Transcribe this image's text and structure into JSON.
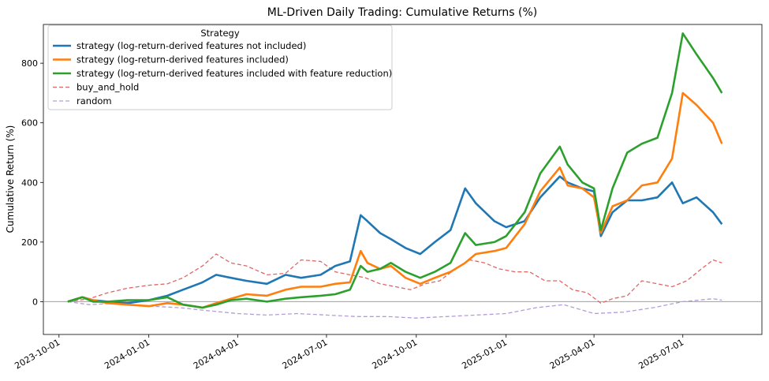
{
  "chart_data": {
    "type": "line",
    "title": "ML-Driven Daily Trading: Cumulative Returns (%)",
    "xlabel": "",
    "ylabel": "Cumulative Return (%)",
    "ylim": [
      -110,
      930
    ],
    "yticks": [
      0,
      200,
      400,
      600,
      800
    ],
    "xlim": [
      "2023-09-15",
      "2025-09-20"
    ],
    "xticks": [
      "2023-10-01",
      "2024-01-01",
      "2024-04-01",
      "2024-07-01",
      "2024-10-01",
      "2025-01-01",
      "2025-04-01",
      "2025-07-01"
    ],
    "legend": {
      "title": "Strategy",
      "placement": "upper-left"
    },
    "hline": 0,
    "series": [
      {
        "name": "strategy (log-return-derived features not included)",
        "color": "#1f77b4",
        "style": "solid",
        "x": [
          "2023-10-10",
          "2023-10-25",
          "2023-11-05",
          "2023-11-20",
          "2023-12-10",
          "2024-01-01",
          "2024-01-20",
          "2024-02-05",
          "2024-02-25",
          "2024-03-10",
          "2024-03-25",
          "2024-04-10",
          "2024-05-01",
          "2024-05-20",
          "2024-06-05",
          "2024-06-25",
          "2024-07-10",
          "2024-07-25",
          "2024-08-05",
          "2024-08-12",
          "2024-08-25",
          "2024-09-05",
          "2024-09-20",
          "2024-10-05",
          "2024-10-20",
          "2024-11-05",
          "2024-11-20",
          "2024-12-01",
          "2024-12-20",
          "2025-01-01",
          "2025-01-20",
          "2025-02-05",
          "2025-02-25",
          "2025-03-05",
          "2025-03-20",
          "2025-04-01",
          "2025-04-08",
          "2025-04-20",
          "2025-05-05",
          "2025-05-20",
          "2025-06-05",
          "2025-06-20",
          "2025-07-01",
          "2025-07-15",
          "2025-08-01",
          "2025-08-10"
        ],
        "y": [
          0,
          15,
          5,
          0,
          -5,
          5,
          20,
          40,
          65,
          90,
          80,
          70,
          60,
          90,
          80,
          90,
          120,
          135,
          290,
          270,
          230,
          210,
          180,
          160,
          200,
          240,
          380,
          330,
          270,
          250,
          270,
          350,
          420,
          400,
          380,
          370,
          220,
          300,
          340,
          340,
          350,
          400,
          330,
          350,
          300,
          260
        ]
      },
      {
        "name": "strategy (log-return-derived features included)",
        "color": "#ff7f0e",
        "style": "solid",
        "x": [
          "2023-10-10",
          "2023-10-25",
          "2023-11-05",
          "2023-11-20",
          "2023-12-10",
          "2024-01-01",
          "2024-01-20",
          "2024-02-05",
          "2024-02-25",
          "2024-03-10",
          "2024-03-25",
          "2024-04-10",
          "2024-05-01",
          "2024-05-20",
          "2024-06-05",
          "2024-06-25",
          "2024-07-10",
          "2024-07-25",
          "2024-08-05",
          "2024-08-12",
          "2024-08-25",
          "2024-09-05",
          "2024-09-20",
          "2024-10-05",
          "2024-10-20",
          "2024-11-05",
          "2024-11-20",
          "2024-12-01",
          "2024-12-20",
          "2025-01-01",
          "2025-01-20",
          "2025-02-05",
          "2025-02-25",
          "2025-03-05",
          "2025-03-20",
          "2025-04-01",
          "2025-04-08",
          "2025-04-20",
          "2025-05-05",
          "2025-05-20",
          "2025-06-05",
          "2025-06-20",
          "2025-07-01",
          "2025-07-15",
          "2025-08-01",
          "2025-08-10"
        ],
        "y": [
          0,
          15,
          5,
          -5,
          -10,
          -15,
          -5,
          -10,
          -20,
          -5,
          10,
          25,
          20,
          40,
          50,
          50,
          60,
          65,
          170,
          130,
          110,
          120,
          80,
          60,
          80,
          100,
          130,
          160,
          170,
          180,
          260,
          370,
          450,
          390,
          380,
          350,
          230,
          320,
          340,
          390,
          400,
          480,
          700,
          660,
          600,
          530
        ]
      },
      {
        "name": "strategy (log-return-derived features included with feature reduction)",
        "color": "#2ca02c",
        "style": "solid",
        "x": [
          "2023-10-10",
          "2023-10-25",
          "2023-11-05",
          "2023-11-20",
          "2023-12-10",
          "2024-01-01",
          "2024-01-20",
          "2024-02-05",
          "2024-02-25",
          "2024-03-10",
          "2024-03-25",
          "2024-04-10",
          "2024-05-01",
          "2024-05-20",
          "2024-06-05",
          "2024-06-25",
          "2024-07-10",
          "2024-07-25",
          "2024-08-05",
          "2024-08-12",
          "2024-08-25",
          "2024-09-05",
          "2024-09-20",
          "2024-10-05",
          "2024-10-20",
          "2024-11-05",
          "2024-11-20",
          "2024-12-01",
          "2024-12-20",
          "2025-01-01",
          "2025-01-20",
          "2025-02-05",
          "2025-02-25",
          "2025-03-05",
          "2025-03-20",
          "2025-04-01",
          "2025-04-08",
          "2025-04-20",
          "2025-05-05",
          "2025-05-20",
          "2025-06-05",
          "2025-06-20",
          "2025-07-01",
          "2025-07-15",
          "2025-08-01",
          "2025-08-10"
        ],
        "y": [
          0,
          15,
          0,
          0,
          5,
          5,
          15,
          -10,
          -20,
          -10,
          5,
          10,
          0,
          10,
          15,
          20,
          25,
          40,
          120,
          100,
          110,
          130,
          100,
          80,
          100,
          130,
          230,
          190,
          200,
          220,
          300,
          430,
          520,
          460,
          400,
          380,
          240,
          380,
          500,
          530,
          550,
          700,
          900,
          830,
          750,
          700
        ]
      },
      {
        "name": "buy_and_hold",
        "color": "#e06666",
        "style": "dashed",
        "x": [
          "2023-10-10",
          "2023-11-01",
          "2023-11-20",
          "2023-12-10",
          "2024-01-01",
          "2024-01-20",
          "2024-02-05",
          "2024-02-25",
          "2024-03-10",
          "2024-03-25",
          "2024-04-10",
          "2024-05-01",
          "2024-05-20",
          "2024-06-05",
          "2024-06-25",
          "2024-07-10",
          "2024-07-25",
          "2024-08-10",
          "2024-08-25",
          "2024-09-10",
          "2024-09-25",
          "2024-10-10",
          "2024-10-25",
          "2024-11-10",
          "2024-11-25",
          "2024-12-10",
          "2024-12-25",
          "2025-01-10",
          "2025-01-25",
          "2025-02-10",
          "2025-02-25",
          "2025-03-10",
          "2025-03-25",
          "2025-04-08",
          "2025-04-20",
          "2025-05-05",
          "2025-05-20",
          "2025-06-05",
          "2025-06-20",
          "2025-07-05",
          "2025-07-20",
          "2025-08-01",
          "2025-08-10"
        ],
        "y": [
          0,
          10,
          30,
          45,
          55,
          60,
          80,
          120,
          160,
          130,
          120,
          90,
          95,
          140,
          135,
          100,
          90,
          80,
          60,
          50,
          40,
          60,
          70,
          110,
          140,
          130,
          110,
          100,
          100,
          70,
          70,
          40,
          30,
          -5,
          10,
          20,
          70,
          60,
          50,
          70,
          110,
          140,
          130
        ]
      },
      {
        "name": "random",
        "color": "#b39ddb",
        "style": "dashed",
        "x": [
          "2023-10-10",
          "2023-11-01",
          "2023-12-01",
          "2024-01-01",
          "2024-02-01",
          "2024-03-01",
          "2024-04-01",
          "2024-05-01",
          "2024-06-01",
          "2024-07-01",
          "2024-08-01",
          "2024-09-01",
          "2024-10-01",
          "2024-11-01",
          "2024-12-01",
          "2025-01-01",
          "2025-02-01",
          "2025-03-01",
          "2025-04-01",
          "2025-05-01",
          "2025-06-01",
          "2025-07-01",
          "2025-08-01",
          "2025-08-10"
        ],
        "y": [
          0,
          -10,
          -5,
          -15,
          -20,
          -30,
          -40,
          -45,
          -40,
          -45,
          -50,
          -50,
          -55,
          -50,
          -45,
          -40,
          -20,
          -10,
          -40,
          -35,
          -20,
          0,
          10,
          5
        ]
      }
    ]
  }
}
